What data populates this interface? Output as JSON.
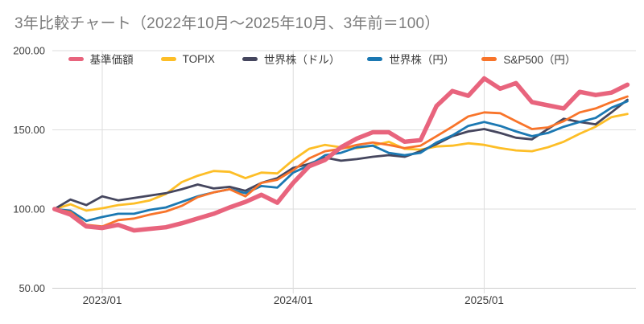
{
  "title": "3年比較チャート（2022年10月～2025年10月、3年前＝100）",
  "colors": {
    "background": "#ffffff",
    "title_text": "#7b7b7b",
    "axis_text": "#3d3d3d",
    "gridline": "#dedede",
    "axis_line": "#cccccc",
    "legend_text": "#3c3c3c"
  },
  "chart_data": {
    "type": "line",
    "title": "3年比較チャート（2022年10月～2025年10月、3年前＝100）",
    "baseline_note": "3年前＝100",
    "grid": "on",
    "legend_position": "top",
    "x_axis": {
      "tick_labels": [
        "2023/01",
        "2024/01",
        "2025/01"
      ],
      "tick_month_indices": [
        3,
        15,
        27
      ]
    },
    "y_axis": {
      "tick_labels": [
        "200.00",
        "150.00",
        "100.00",
        "50.00"
      ],
      "tick_values": [
        200,
        150,
        100,
        50
      ],
      "range": [
        50,
        200
      ]
    },
    "categories": [
      "2022/10",
      "2022/11",
      "2022/12",
      "2023/01",
      "2023/02",
      "2023/03",
      "2023/04",
      "2023/05",
      "2023/06",
      "2023/07",
      "2023/08",
      "2023/09",
      "2023/10",
      "2023/11",
      "2023/12",
      "2024/01",
      "2024/02",
      "2024/03",
      "2024/04",
      "2024/05",
      "2024/06",
      "2024/07",
      "2024/08",
      "2024/09",
      "2024/10",
      "2024/11",
      "2024/12",
      "2025/01",
      "2025/02",
      "2025/03",
      "2025/04",
      "2025/05",
      "2025/06",
      "2025/07",
      "2025/08",
      "2025/09",
      "2025/10"
    ],
    "series": [
      {
        "id": "fund",
        "name": "基準価額",
        "color": "#e8647d",
        "emphasis": true,
        "values": [
          100,
          96.5,
          89,
          88,
          90,
          86.5,
          87.5,
          88.5,
          91,
          94,
          97,
          101,
          104.5,
          109,
          104,
          116.5,
          127,
          131,
          139,
          144.5,
          148.5,
          148.5,
          142.5,
          143.5,
          165,
          174.5,
          171.5,
          182.5,
          176,
          179.5,
          167.5,
          165.5,
          163.5,
          174,
          172,
          173.5,
          178.5
        ]
      },
      {
        "id": "topix",
        "name": "TOPIX",
        "color": "#fdbe27",
        "emphasis": false,
        "values": [
          100,
          103,
          99,
          100.5,
          102.5,
          103.5,
          105.5,
          109.5,
          117,
          121,
          124,
          123.5,
          119.5,
          123,
          122.5,
          131,
          138,
          140.5,
          139,
          138.5,
          140,
          142.5,
          138,
          137.5,
          139.5,
          140,
          141.5,
          140.5,
          138.5,
          137,
          136.5,
          139,
          142.5,
          147.5,
          152,
          158,
          160
        ]
      },
      {
        "id": "world-usd",
        "name": "世界株（ドル）",
        "color": "#45465e",
        "emphasis": false,
        "values": [
          100,
          106,
          102.5,
          108,
          105.5,
          107,
          108.5,
          110,
          112.5,
          115.5,
          113,
          114,
          111.5,
          116.5,
          119.5,
          126,
          128.5,
          132.5,
          130.5,
          131.5,
          133,
          134,
          133,
          136.5,
          141,
          146,
          149,
          150.5,
          148,
          145,
          144,
          150.5,
          157,
          155,
          153.5,
          161,
          169
        ]
      },
      {
        "id": "world-jpy",
        "name": "世界株（円）",
        "color": "#1b78b2",
        "emphasis": false,
        "values": [
          100,
          99,
          92.5,
          95,
          97,
          97,
          99.5,
          101,
          104.5,
          108,
          110.5,
          112.5,
          110,
          114.5,
          113.5,
          123,
          127.5,
          134,
          135.5,
          139,
          140,
          135.5,
          134,
          135.5,
          142,
          146.5,
          152.5,
          155,
          152.5,
          149,
          146,
          148,
          152,
          155,
          157.5,
          164,
          168
        ]
      },
      {
        "id": "sp500-jpy",
        "name": "S&P500（円）",
        "color": "#f8742a",
        "emphasis": false,
        "values": [
          100,
          98,
          90,
          89,
          93,
          94,
          96.5,
          98.5,
          102,
          107.5,
          110.5,
          112.5,
          108,
          116.5,
          118.5,
          124.5,
          132,
          136.5,
          138,
          140.5,
          142,
          140.5,
          138.5,
          140,
          146,
          152,
          158.5,
          161,
          160.5,
          155.5,
          150.5,
          151.5,
          155.5,
          161,
          163.5,
          167.5,
          171
        ]
      }
    ]
  }
}
